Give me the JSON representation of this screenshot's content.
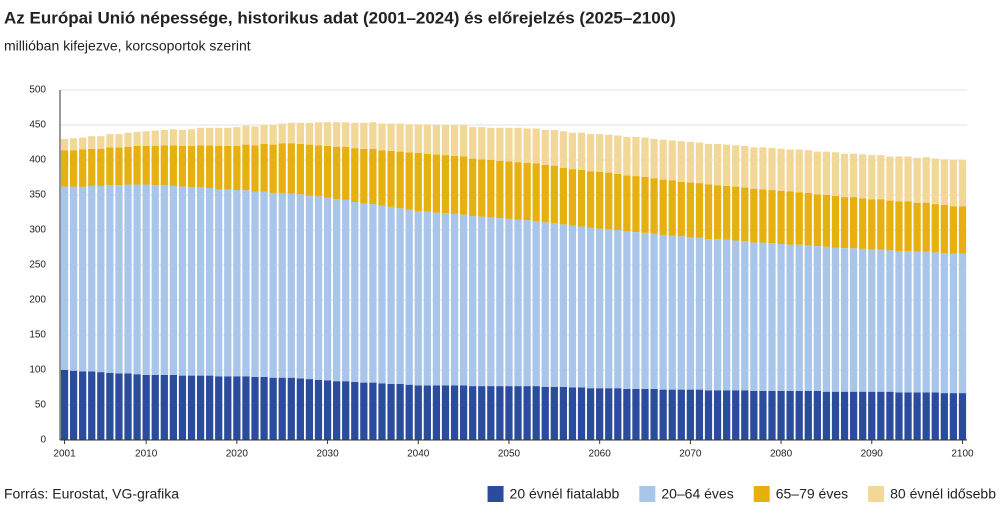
{
  "chart_data": {
    "type": "stacked-bar",
    "title": "Az Európai Unió népessége, historikus adat (2001–2024) és előrejelzés (2025–2100)",
    "subtitle": "millióban kifejezve, korcsoportok szerint",
    "source": "Forrás: Eurostat, VG-grafika",
    "x": [
      2001,
      2002,
      2003,
      2004,
      2005,
      2006,
      2007,
      2008,
      2009,
      2010,
      2011,
      2012,
      2013,
      2014,
      2015,
      2016,
      2017,
      2018,
      2019,
      2020,
      2021,
      2022,
      2023,
      2024,
      2025,
      2026,
      2027,
      2028,
      2029,
      2030,
      2031,
      2032,
      2033,
      2034,
      2035,
      2036,
      2037,
      2038,
      2039,
      2040,
      2041,
      2042,
      2043,
      2044,
      2045,
      2046,
      2047,
      2048,
      2049,
      2050,
      2051,
      2052,
      2053,
      2054,
      2055,
      2056,
      2057,
      2058,
      2059,
      2060,
      2061,
      2062,
      2063,
      2064,
      2065,
      2066,
      2067,
      2068,
      2069,
      2070,
      2071,
      2072,
      2073,
      2074,
      2075,
      2076,
      2077,
      2078,
      2079,
      2080,
      2081,
      2082,
      2083,
      2084,
      2085,
      2086,
      2087,
      2088,
      2089,
      2090,
      2091,
      2092,
      2093,
      2094,
      2095,
      2096,
      2097,
      2098,
      2099,
      2100
    ],
    "xlim": [
      2000.5,
      2100.5
    ],
    "xticks": [
      2001,
      2010,
      2020,
      2030,
      2040,
      2050,
      2060,
      2070,
      2080,
      2090,
      2100
    ],
    "ylim": [
      0,
      500
    ],
    "yticks": [
      0,
      50,
      100,
      150,
      200,
      250,
      300,
      350,
      400,
      450,
      500
    ],
    "grid": true,
    "legend": "bottom-right",
    "series": [
      {
        "name": "20 évnél fiatalabb",
        "color": "#2b4c9c",
        "values": [
          100,
          99,
          98,
          98,
          97,
          96,
          95,
          95,
          94,
          93,
          93,
          93,
          93,
          92,
          92,
          92,
          92,
          91,
          91,
          91,
          91,
          90,
          90,
          89,
          89,
          89,
          88,
          87,
          86,
          85,
          84,
          84,
          83,
          82,
          82,
          81,
          80,
          80,
          79,
          78,
          78,
          78,
          78,
          78,
          78,
          77,
          77,
          77,
          77,
          77,
          77,
          77,
          77,
          76,
          76,
          76,
          75,
          75,
          74,
          74,
          74,
          74,
          73,
          73,
          73,
          73,
          72,
          72,
          72,
          72,
          72,
          71,
          71,
          71,
          71,
          71,
          70,
          70,
          70,
          70,
          70,
          70,
          70,
          70,
          69,
          69,
          69,
          69,
          69,
          69,
          69,
          69,
          68,
          68,
          68,
          68,
          68,
          67,
          67,
          67
        ]
      },
      {
        "name": "20–64 éves",
        "color": "#a9c5ea",
        "values": [
          262,
          263,
          264,
          265,
          266,
          268,
          269,
          270,
          271,
          272,
          271,
          271,
          270,
          270,
          269,
          269,
          268,
          267,
          267,
          266,
          266,
          265,
          265,
          264,
          264,
          263,
          263,
          262,
          262,
          261,
          260,
          259,
          257,
          256,
          255,
          254,
          253,
          251,
          250,
          249,
          248,
          247,
          246,
          245,
          244,
          243,
          242,
          241,
          240,
          239,
          238,
          237,
          236,
          235,
          234,
          232,
          231,
          230,
          229,
          228,
          227,
          226,
          225,
          224,
          223,
          222,
          221,
          220,
          219,
          218,
          217,
          216,
          216,
          215,
          214,
          213,
          212,
          212,
          211,
          210,
          209,
          209,
          208,
          207,
          207,
          206,
          205,
          205,
          204,
          203,
          203,
          202,
          202,
          202,
          201,
          201,
          200,
          200,
          199,
          199
        ]
      },
      {
        "name": "65–79 éves",
        "color": "#e6b010",
        "values": [
          52,
          52,
          53,
          53,
          53,
          54,
          54,
          54,
          55,
          55,
          56,
          57,
          58,
          58,
          59,
          60,
          61,
          62,
          62,
          63,
          65,
          66,
          68,
          69,
          71,
          72,
          72,
          73,
          73,
          74,
          75,
          76,
          77,
          78,
          79,
          79,
          80,
          81,
          82,
          83,
          83,
          83,
          83,
          83,
          83,
          82,
          82,
          82,
          82,
          82,
          82,
          82,
          82,
          82,
          82,
          81,
          81,
          81,
          81,
          81,
          81,
          80,
          80,
          80,
          80,
          79,
          79,
          79,
          78,
          78,
          78,
          78,
          77,
          77,
          77,
          77,
          77,
          76,
          76,
          76,
          76,
          75,
          75,
          74,
          74,
          74,
          73,
          73,
          72,
          72,
          72,
          71,
          71,
          71,
          70,
          70,
          69,
          69,
          68,
          68
        ]
      },
      {
        "name": "80 évnél idősebb",
        "color": "#f1d898",
        "values": [
          16,
          17,
          17,
          18,
          18,
          19,
          19,
          20,
          20,
          21,
          22,
          22,
          23,
          23,
          24,
          25,
          25,
          26,
          26,
          27,
          27,
          27,
          27,
          28,
          28,
          29,
          30,
          31,
          33,
          34,
          35,
          35,
          36,
          37,
          38,
          38,
          39,
          40,
          40,
          41,
          42,
          42,
          43,
          44,
          45,
          45,
          46,
          46,
          47,
          48,
          49,
          49,
          50,
          50,
          51,
          52,
          52,
          53,
          53,
          54,
          54,
          55,
          55,
          56,
          56,
          56,
          57,
          57,
          58,
          58,
          58,
          58,
          59,
          59,
          59,
          59,
          59,
          60,
          60,
          60,
          60,
          61,
          61,
          61,
          62,
          62,
          62,
          62,
          63,
          63,
          63,
          63,
          64,
          64,
          64,
          65,
          65,
          65,
          66,
          66
        ]
      }
    ]
  }
}
